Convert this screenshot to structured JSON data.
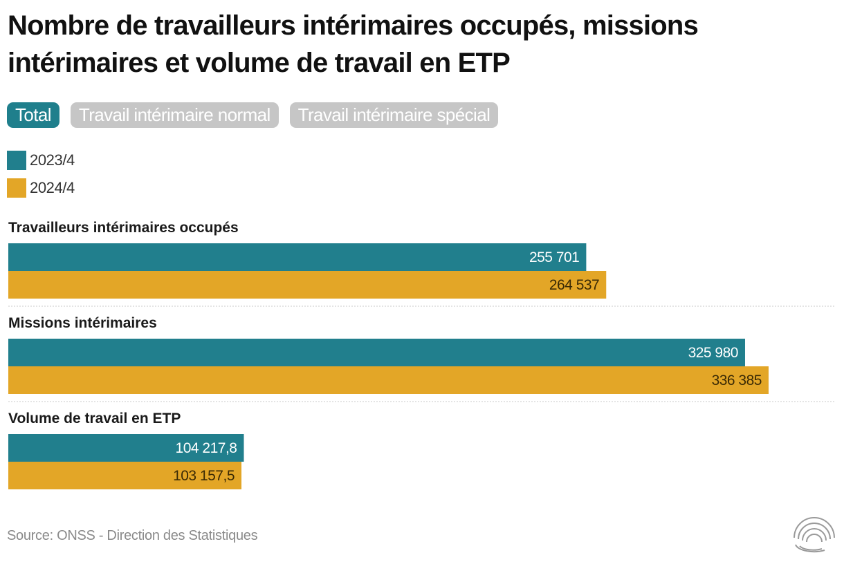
{
  "title": "Nombre de travailleurs intérimaires occupés, missions intérimaires et volume de travail en ETP",
  "tabs": [
    {
      "label": "Total",
      "active": true
    },
    {
      "label": "Travail intérimaire normal",
      "active": false
    },
    {
      "label": "Travail intérimaire spécial",
      "active": false
    }
  ],
  "colors": {
    "series_2023": "#217f8d",
    "series_2024": "#e3a627",
    "active_tab": "#1f7f8c",
    "inactive_tab": "#c6c6c6"
  },
  "legend": [
    {
      "label": "2023/4",
      "color": "#217f8d"
    },
    {
      "label": "2024/4",
      "color": "#e3a627"
    }
  ],
  "chart_data": {
    "type": "bar",
    "orientation": "horizontal",
    "title": "Nombre de travailleurs intérimaires occupés, missions intérimaires et volume de travail en ETP",
    "categories": [
      "Travailleurs intérimaires occupés",
      "Missions intérimaires",
      "Volume de travail en ETP"
    ],
    "series": [
      {
        "name": "2023/4",
        "values": [
          255701,
          325980,
          104217.8
        ],
        "labels": [
          "255 701",
          "325 980",
          "104 217,8"
        ]
      },
      {
        "name": "2024/4",
        "values": [
          264537,
          336385,
          103157.5
        ],
        "labels": [
          "264 537",
          "336 385",
          "103 157,5"
        ]
      }
    ],
    "xlim": [
      0,
      352000
    ],
    "grid": false
  },
  "source": "Source: ONSS - Direction des Statistiques",
  "logo_icon": "concentric-arcs-logo-icon"
}
